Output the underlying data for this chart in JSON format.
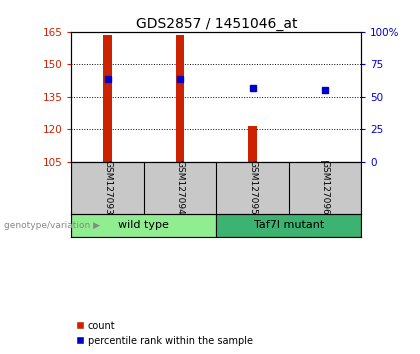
{
  "title": "GDS2857 / 1451046_at",
  "samples": [
    "GSM127093",
    "GSM127094",
    "GSM127095",
    "GSM127096"
  ],
  "count_values": [
    163.5,
    163.5,
    121.5,
    105.5
  ],
  "percentile_values": [
    64,
    64,
    57,
    55
  ],
  "count_base": 105,
  "ylim_left": [
    105,
    165
  ],
  "ylim_right": [
    0,
    100
  ],
  "yticks_left": [
    105,
    120,
    135,
    150,
    165
  ],
  "yticks_right": [
    0,
    25,
    50,
    75,
    100
  ],
  "groups": [
    {
      "label": "wild type",
      "samples": [
        0,
        1
      ],
      "color": "#90EE90"
    },
    {
      "label": "Taf7l mutant",
      "samples": [
        2,
        3
      ],
      "color": "#3CB371"
    }
  ],
  "group_label_text": "genotype/variation",
  "bar_color": "#CC2200",
  "square_color": "#0000CC",
  "bar_width": 0.12,
  "background_plot": "#FFFFFF",
  "background_sample_labels": "#C8C8C8",
  "title_fontsize": 10,
  "tick_fontsize": 7.5,
  "legend_count_label": "count",
  "legend_percentile_label": "percentile rank within the sample"
}
